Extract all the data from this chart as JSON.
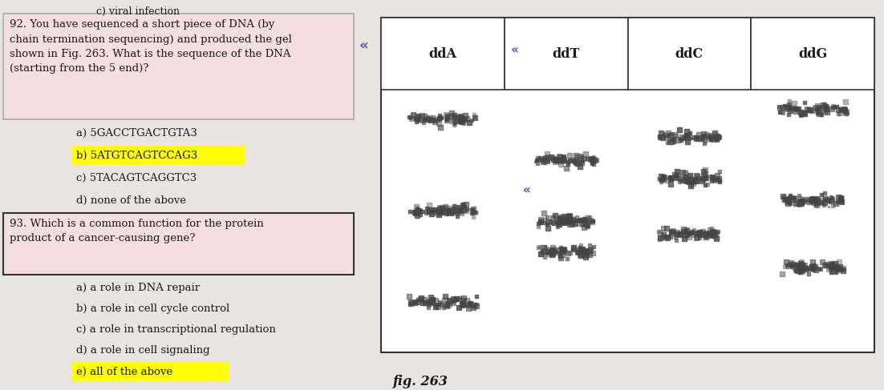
{
  "page_bg": "#e8e4e0",
  "q92_box_color": "#f5dede",
  "q93_box_color": "#f5dede",
  "highlight_yellow": "#ffff00",
  "text_color": "#1a1a1a",
  "gel_band_color": "#444444",
  "question92": "92. You have sequenced a short piece of DNA (by\nchain termination sequencing) and produced the gel\nshown in Fig. 263. What is the sequence of the DNA\n(starting from the 5 end)?",
  "q92_answers": [
    {
      "label": "a) 5GACCTGACTGTA3",
      "highlight": false
    },
    {
      "label": "b) 5ATGTCAGTCCAG3",
      "highlight": true
    },
    {
      "label": "c) 5TACAGTCAGGTC3",
      "highlight": false
    },
    {
      "label": "d) none of the above",
      "highlight": false
    }
  ],
  "question93": "93. Which is a common function for the protein\nproduct of a cancer-causing gene?",
  "q93_answers": [
    {
      "label": "a) a role in DNA repair",
      "highlight": false
    },
    {
      "label": "b) a role in cell cycle control",
      "highlight": false
    },
    {
      "label": "c) a role in transcriptional regulation",
      "highlight": false
    },
    {
      "label": "d) a role in cell signaling",
      "highlight": false
    },
    {
      "label": "e) all of the above",
      "highlight": true
    }
  ],
  "gel_lanes": [
    "ddA",
    "ddT",
    "ddC",
    "ddG"
  ],
  "fig_caption": "fig. 263",
  "chevron_color": "#5555aa",
  "band_data": [
    [
      0,
      0.1,
      0.55
    ],
    [
      0,
      0.46,
      0.55
    ],
    [
      0,
      0.82,
      0.55
    ],
    [
      1,
      0.26,
      0.5
    ],
    [
      1,
      0.5,
      0.45
    ],
    [
      1,
      0.62,
      0.45
    ],
    [
      2,
      0.17,
      0.5
    ],
    [
      2,
      0.33,
      0.5
    ],
    [
      2,
      0.55,
      0.5
    ],
    [
      3,
      0.06,
      0.55
    ],
    [
      3,
      0.42,
      0.5
    ],
    [
      3,
      0.68,
      0.5
    ]
  ]
}
